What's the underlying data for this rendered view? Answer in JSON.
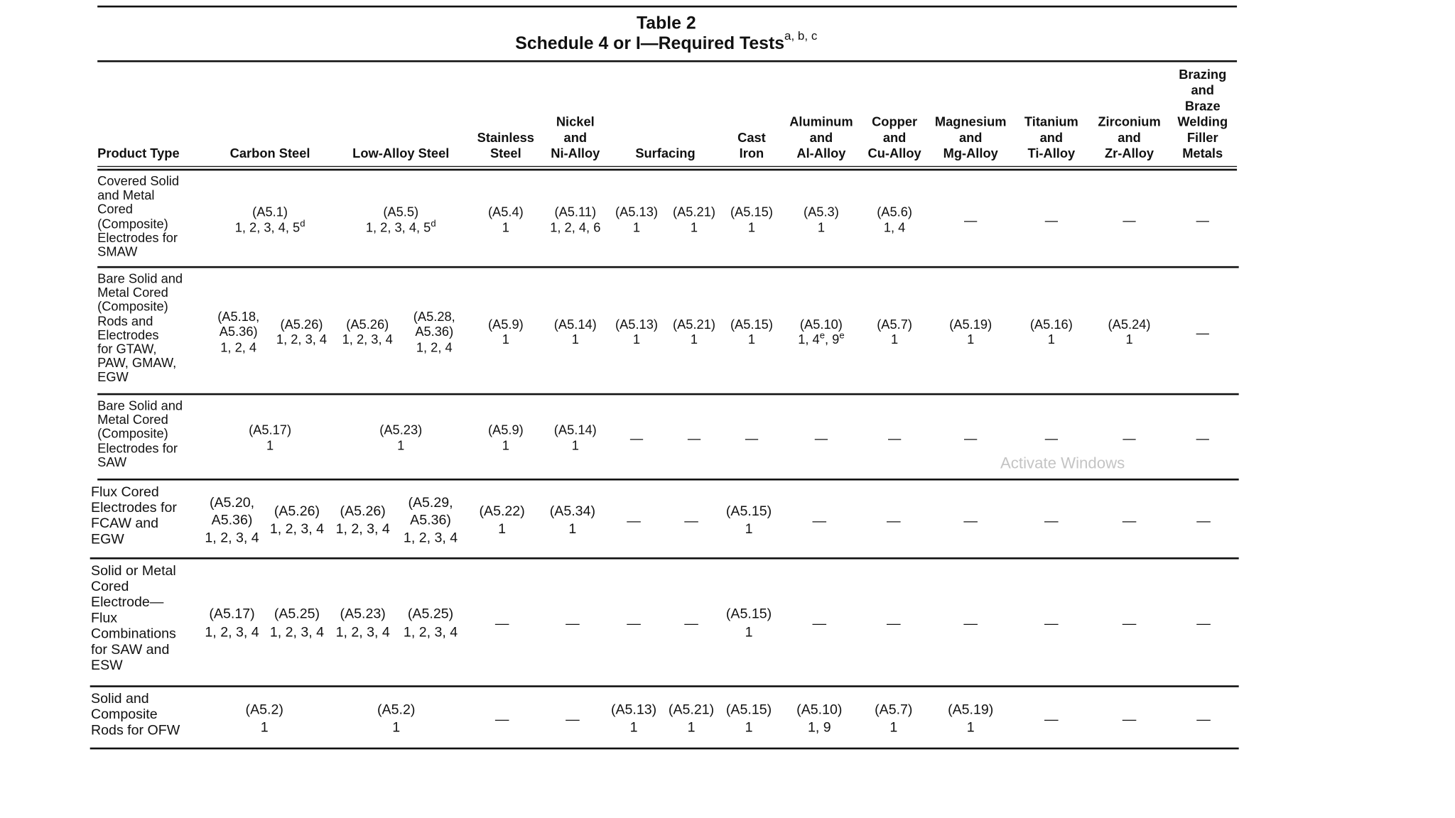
{
  "title": {
    "line1": "Table 2",
    "line2": "Schedule 4 or I—Required Tests",
    "sup": "a, b, c"
  },
  "header": [
    [
      "Product Type"
    ],
    [
      "Carbon Steel"
    ],
    [
      "Low-Alloy Steel"
    ],
    [
      "Stainless",
      "Steel"
    ],
    [
      "Nickel",
      "and",
      "Ni-Alloy"
    ],
    [
      "Surfacing"
    ],
    [
      "Cast",
      "Iron"
    ],
    [
      "Aluminum",
      "and",
      "Al-Alloy"
    ],
    [
      "Copper",
      "and",
      "Cu-Alloy"
    ],
    [
      "Magnesium",
      "and",
      "Mg-Alloy"
    ],
    [
      "Titanium",
      "and",
      "Ti-Alloy"
    ],
    [
      "Zirconium",
      "and",
      "Zr-Alloy"
    ],
    [
      "Brazing",
      "and",
      "Braze",
      "Welding",
      "Filler",
      "Metals"
    ]
  ],
  "rows": [
    {
      "product": [
        "Covered Solid",
        "and Metal",
        "Cored",
        "(Composite)",
        "Electrodes for",
        "SMAW"
      ],
      "cells": [
        [
          "(A5.1)",
          [
            "1, 2, 3, 4, 5",
            {
              "sup": "d"
            }
          ]
        ],
        [
          "(A5.5)",
          [
            "1, 2, 3, 4, 5",
            {
              "sup": "d"
            }
          ]
        ],
        [
          "(A5.4)",
          "1"
        ],
        [
          "(A5.11)",
          "1, 2, 4, 6"
        ],
        [
          "(A5.13)",
          "1"
        ],
        [
          "(A5.21)",
          "1"
        ],
        [
          "(A5.15)",
          "1"
        ],
        [
          "(A5.3)",
          "1"
        ],
        [
          "(A5.6)",
          "1, 4"
        ],
        [
          "—"
        ],
        [
          "—"
        ],
        [
          "—"
        ],
        [
          "—"
        ]
      ]
    },
    {
      "product": [
        "Bare Solid and",
        "Metal Cored",
        "(Composite)",
        "Rods and",
        "Electrodes",
        "for GTAW,",
        "PAW, GMAW,",
        "EGW"
      ],
      "cells": [
        [
          "(A5.18,",
          "A5.36)",
          "1, 2, 4"
        ],
        [
          "(A5.26)",
          "1, 2, 3, 4"
        ],
        [
          "(A5.26)",
          "1, 2, 3, 4"
        ],
        [
          "(A5.28,",
          "A5.36)",
          "1, 2, 4"
        ],
        [
          "(A5.9)",
          "1"
        ],
        [
          "(A5.14)",
          "1"
        ],
        [
          "(A5.13)",
          "1"
        ],
        [
          "(A5.21)",
          "1"
        ],
        [
          "(A5.15)",
          "1"
        ],
        [
          "(A5.10)",
          [
            "1, 4",
            {
              "sup": "e"
            },
            ", 9",
            {
              "sup": "e"
            }
          ]
        ],
        [
          "(A5.7)",
          "1"
        ],
        [
          "(A5.19)",
          "1"
        ],
        [
          "(A5.16)",
          "1"
        ],
        [
          "(A5.24)",
          "1"
        ],
        [
          "—"
        ]
      ]
    },
    {
      "product": [
        "Bare Solid and",
        "Metal Cored",
        "(Composite)",
        "Electrodes for",
        "SAW"
      ],
      "cells": [
        [
          "(A5.17)",
          "1"
        ],
        [
          "(A5.23)",
          "1"
        ],
        [
          "(A5.9)",
          "1"
        ],
        [
          "(A5.14)",
          "1"
        ],
        [
          "—"
        ],
        [
          "—"
        ],
        [
          "—"
        ],
        [
          "—"
        ],
        [
          "—"
        ],
        [
          "—"
        ],
        [
          "—"
        ],
        [
          "—"
        ],
        [
          "—"
        ]
      ]
    },
    {
      "product": [
        "Flux Cored",
        "Electrodes for",
        "FCAW and",
        "EGW"
      ],
      "cells": [
        [
          "(A5.20,",
          "A5.36)",
          "1, 2, 3, 4"
        ],
        [
          "(A5.26)",
          "1, 2, 3, 4"
        ],
        [
          "(A5.26)",
          "1, 2, 3, 4"
        ],
        [
          "(A5.29,",
          "A5.36)",
          "1, 2, 3, 4"
        ],
        [
          "(A5.22)",
          "1"
        ],
        [
          "(A5.34)",
          "1"
        ],
        [
          "—"
        ],
        [
          "—"
        ],
        [
          "(A5.15)",
          "1"
        ],
        [
          "—"
        ],
        [
          "—"
        ],
        [
          "—"
        ],
        [
          "—"
        ],
        [
          "—"
        ],
        [
          "—"
        ]
      ]
    },
    {
      "product": [
        "Solid or Metal",
        "Cored",
        "Electrode—",
        "Flux",
        "Combinations",
        "for SAW and",
        "ESW"
      ],
      "cells": [
        [
          "(A5.17)",
          "1, 2, 3, 4"
        ],
        [
          "(A5.25)",
          "1, 2, 3, 4"
        ],
        [
          "(A5.23)",
          "1, 2, 3, 4"
        ],
        [
          "(A5.25)",
          "1, 2, 3, 4"
        ],
        [
          "—"
        ],
        [
          "—"
        ],
        [
          "—"
        ],
        [
          "—"
        ],
        [
          "(A5.15)",
          "1"
        ],
        [
          "—"
        ],
        [
          "—"
        ],
        [
          "—"
        ],
        [
          "—"
        ],
        [
          "—"
        ],
        [
          "—"
        ]
      ]
    },
    {
      "product": [
        "Solid and",
        "Composite",
        "Rods for OFW"
      ],
      "cells": [
        [
          "(A5.2)",
          "1"
        ],
        [
          "(A5.2)",
          "1"
        ],
        [
          "—"
        ],
        [
          "—"
        ],
        [
          "(A5.13)",
          "1"
        ],
        [
          "(A5.21)",
          "1"
        ],
        [
          "(A5.15)",
          "1"
        ],
        [
          "(A5.10)",
          "1, 9"
        ],
        [
          "(A5.7)",
          "1"
        ],
        [
          "(A5.19)",
          "1"
        ],
        [
          "—"
        ],
        [
          "—"
        ],
        [
          "—"
        ]
      ]
    }
  ],
  "watermark": "Activate Windows"
}
